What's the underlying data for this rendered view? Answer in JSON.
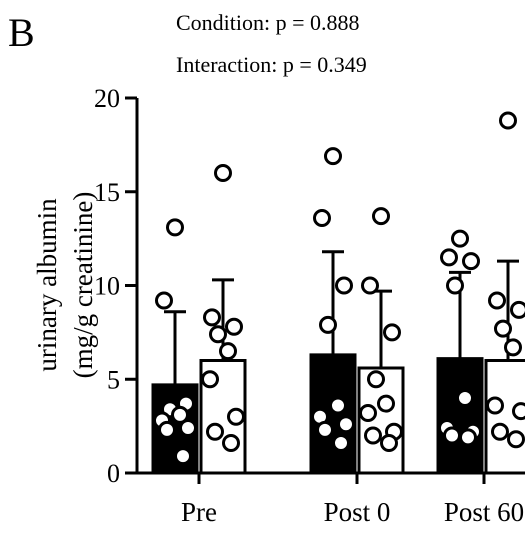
{
  "panel_label": "B",
  "stats": [
    "Condition: p = 0.888",
    "Interaction: p = 0.349"
  ],
  "chart_data": {
    "type": "bar",
    "ylabel_lines": [
      "urinary albumin",
      "(mg/g creatinine)"
    ],
    "ylim": [
      0,
      20
    ],
    "yticks": [
      0,
      5,
      10,
      15,
      20
    ],
    "categories": [
      "Pre",
      "Post 0",
      "Post 60"
    ],
    "series_colors": [
      "#000000",
      "#ffffff"
    ],
    "series": [
      {
        "values": [
          4.7,
          6.3,
          6.1
        ],
        "sd": [
          3.9,
          5.5,
          4.6
        ],
        "points": [
          [
            13.1,
            9.2,
            3.7,
            3.4,
            3.1,
            2.8,
            2.4,
            2.3,
            0.9
          ],
          [
            16.9,
            13.6,
            10.0,
            7.9,
            3.6,
            3.0,
            2.6,
            2.3,
            1.6
          ],
          [
            12.5,
            11.5,
            11.3,
            10.0,
            4.0,
            2.4,
            2.2,
            2.0,
            1.9
          ]
        ]
      },
      {
        "values": [
          6.0,
          5.6,
          6.0
        ],
        "sd": [
          4.3,
          4.1,
          5.3
        ],
        "points": [
          [
            16.0,
            8.3,
            7.8,
            7.4,
            6.5,
            5.0,
            3.0,
            2.2,
            1.6
          ],
          [
            13.7,
            10.0,
            7.5,
            5.0,
            3.7,
            3.2,
            2.2,
            2.0,
            1.6
          ],
          [
            18.8,
            9.2,
            8.7,
            7.7,
            6.7,
            3.6,
            3.3,
            2.2,
            1.8
          ]
        ]
      }
    ]
  }
}
